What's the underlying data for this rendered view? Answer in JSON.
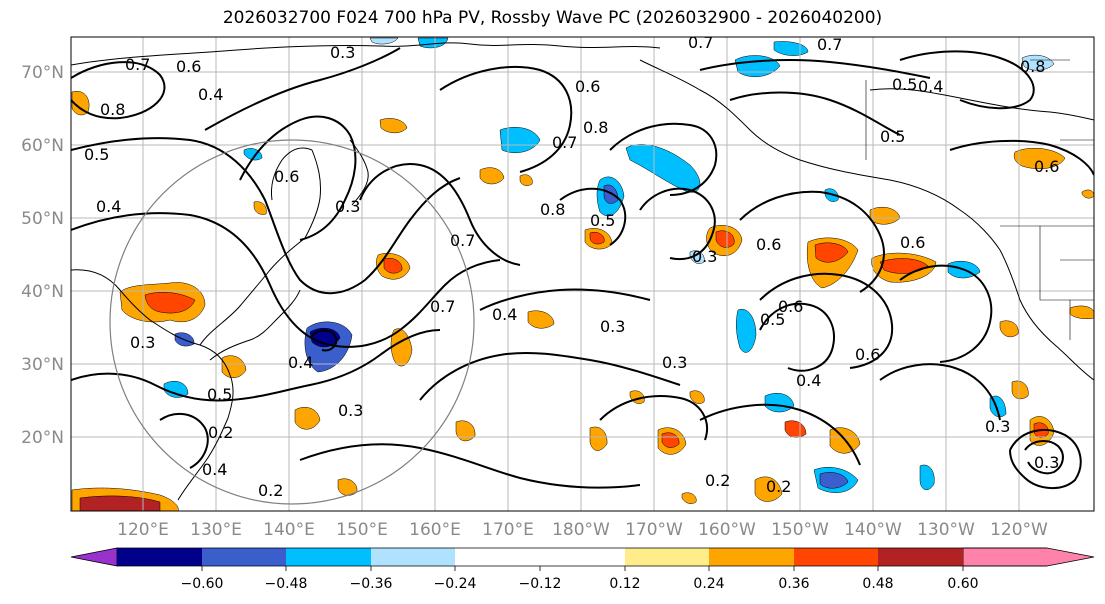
{
  "title": "2026032700 F024 700 hPa PV, Rossby Wave PC (2026032900 - 2026040200)",
  "lat_labels": [
    "70°N",
    "60°N",
    "50°N",
    "40°N",
    "30°N",
    "20°N"
  ],
  "lon_labels": [
    "120°E",
    "130°E",
    "140°E",
    "150°E",
    "160°E",
    "170°E",
    "180°W",
    "170°W",
    "160°W",
    "150°W",
    "140°W",
    "130°W",
    "120°W"
  ],
  "colorbar": {
    "colors": [
      "#9932cc",
      "#00008b",
      "#3a5fcd",
      "#00bfff",
      "#b0e2ff",
      "#ffffff",
      "#ffec8b",
      "#ffa500",
      "#ff4500",
      "#b22222",
      "#ff82ab"
    ],
    "ticks": [
      "−0.60",
      "−0.48",
      "−0.36",
      "−0.24",
      "−0.12",
      "0.12",
      "0.24",
      "0.36",
      "0.48",
      "0.60"
    ]
  },
  "contour_labels": [
    "0.7",
    "0.6",
    "0.4",
    "0.8",
    "0.5",
    "0.3",
    "0.6",
    "0.7",
    "0.8",
    "0.7",
    "0.6",
    "0.5",
    "0.8",
    "0.5",
    "0.7",
    "0.4",
    "0.3",
    "0.6",
    "0.3",
    "0.2",
    "0.5",
    "0.2",
    "0.4",
    "0.3",
    "0.4",
    "0.3",
    "0.2",
    "0.2",
    "0.3",
    "0.3",
    "0.6",
    "0.6",
    "0.4",
    "0.4",
    "0.6",
    "0.5",
    "0.7",
    "0.8",
    "0.6",
    "0.3",
    "0.4",
    "0.3",
    "0.5",
    "0.7"
  ]
}
